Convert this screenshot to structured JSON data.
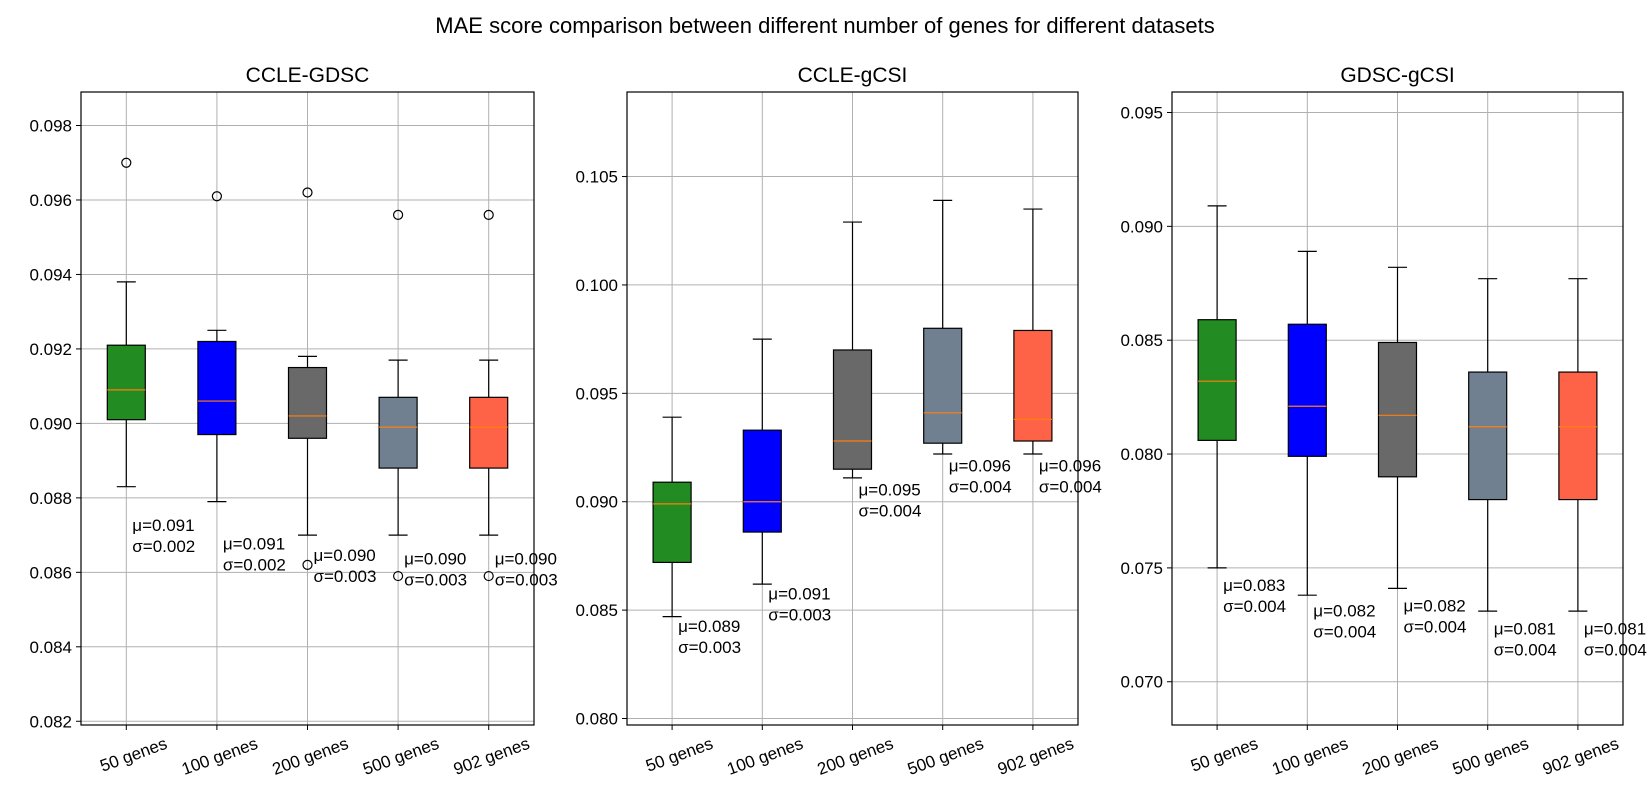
{
  "suptitle": "MAE score comparison between different number of genes for different datasets",
  "chart_data": [
    {
      "type": "box",
      "title": "CCLE-GDSC",
      "categories": [
        "50 genes",
        "100 genes",
        "200 genes",
        "500 genes",
        "902 genes"
      ],
      "ylim": [
        0.0819,
        0.0989
      ],
      "yticks": [
        0.082,
        0.084,
        0.086,
        0.088,
        0.09,
        0.092,
        0.094,
        0.096,
        0.098
      ],
      "ytick_labels": [
        "0.082",
        "0.084",
        "0.086",
        "0.088",
        "0.090",
        "0.092",
        "0.094",
        "0.096",
        "0.098"
      ],
      "grid": true,
      "box_colors": [
        "#228b22",
        "#0000ff",
        "#696969",
        "#708090",
        "#ff6347"
      ],
      "boxes": [
        {
          "whislo": 0.0883,
          "q1": 0.0901,
          "med": 0.0909,
          "q3": 0.0921,
          "whishi": 0.0938,
          "fliers": [
            0.097
          ]
        },
        {
          "whislo": 0.0879,
          "q1": 0.0897,
          "med": 0.0906,
          "q3": 0.0922,
          "whishi": 0.0925,
          "fliers": [
            0.0961
          ]
        },
        {
          "whislo": 0.087,
          "q1": 0.0896,
          "med": 0.0902,
          "q3": 0.0915,
          "whishi": 0.0918,
          "fliers": [
            0.0962,
            0.0862
          ]
        },
        {
          "whislo": 0.087,
          "q1": 0.0888,
          "med": 0.0899,
          "q3": 0.0907,
          "whishi": 0.0917,
          "fliers": [
            0.0956,
            0.0859
          ]
        },
        {
          "whislo": 0.087,
          "q1": 0.0888,
          "med": 0.0899,
          "q3": 0.0907,
          "whishi": 0.0917,
          "fliers": [
            0.0956,
            0.0859
          ]
        }
      ],
      "annotations": [
        {
          "mu": "μ=0.091",
          "sigma": "σ=0.002",
          "y": 0.087
        },
        {
          "mu": "μ=0.091",
          "sigma": "σ=0.002",
          "y": 0.0865
        },
        {
          "mu": "μ=0.090",
          "sigma": "σ=0.003",
          "y": 0.0862
        },
        {
          "mu": "μ=0.090",
          "sigma": "σ=0.003",
          "y": 0.0861
        },
        {
          "mu": "μ=0.090",
          "sigma": "σ=0.003",
          "y": 0.0861
        }
      ]
    },
    {
      "type": "box",
      "title": "CCLE-gCSI",
      "categories": [
        "50 genes",
        "100 genes",
        "200 genes",
        "500 genes",
        "902 genes"
      ],
      "ylim": [
        0.0797,
        0.1089
      ],
      "yticks": [
        0.08,
        0.085,
        0.09,
        0.095,
        0.1,
        0.105
      ],
      "ytick_labels": [
        "0.080",
        "0.085",
        "0.090",
        "0.095",
        "0.100",
        "0.105"
      ],
      "grid": true,
      "box_colors": [
        "#228b22",
        "#0000ff",
        "#696969",
        "#708090",
        "#ff6347"
      ],
      "boxes": [
        {
          "whislo": 0.0847,
          "q1": 0.0872,
          "med": 0.0899,
          "q3": 0.0909,
          "whishi": 0.0939,
          "fliers": []
        },
        {
          "whislo": 0.0862,
          "q1": 0.0886,
          "med": 0.09,
          "q3": 0.0933,
          "whishi": 0.0975,
          "fliers": []
        },
        {
          "whislo": 0.0911,
          "q1": 0.0915,
          "med": 0.0928,
          "q3": 0.097,
          "whishi": 0.1029,
          "fliers": []
        },
        {
          "whislo": 0.0922,
          "q1": 0.0927,
          "med": 0.0941,
          "q3": 0.098,
          "whishi": 0.1039,
          "fliers": []
        },
        {
          "whislo": 0.0922,
          "q1": 0.0928,
          "med": 0.0938,
          "q3": 0.0979,
          "whishi": 0.1035,
          "fliers": []
        }
      ],
      "annotations": [
        {
          "mu": "μ=0.089",
          "sigma": "σ=0.003",
          "y": 0.0838
        },
        {
          "mu": "μ=0.091",
          "sigma": "σ=0.003",
          "y": 0.0853
        },
        {
          "mu": "μ=0.095",
          "sigma": "σ=0.004",
          "y": 0.0901
        },
        {
          "mu": "μ=0.096",
          "sigma": "σ=0.004",
          "y": 0.0912
        },
        {
          "mu": "μ=0.096",
          "sigma": "σ=0.004",
          "y": 0.0912
        }
      ]
    },
    {
      "type": "box",
      "title": "GDSC-gCSI",
      "categories": [
        "50 genes",
        "100 genes",
        "200 genes",
        "500 genes",
        "902 genes"
      ],
      "ylim": [
        0.0681,
        0.0959
      ],
      "yticks": [
        0.07,
        0.075,
        0.08,
        0.085,
        0.09,
        0.095
      ],
      "ytick_labels": [
        "0.070",
        "0.075",
        "0.080",
        "0.085",
        "0.090",
        "0.095"
      ],
      "grid": true,
      "box_colors": [
        "#228b22",
        "#0000ff",
        "#696969",
        "#708090",
        "#ff6347"
      ],
      "boxes": [
        {
          "whislo": 0.075,
          "q1": 0.0806,
          "med": 0.0832,
          "q3": 0.0859,
          "whishi": 0.0909,
          "fliers": []
        },
        {
          "whislo": 0.0738,
          "q1": 0.0799,
          "med": 0.0821,
          "q3": 0.0857,
          "whishi": 0.0889,
          "fliers": []
        },
        {
          "whislo": 0.0741,
          "q1": 0.079,
          "med": 0.0817,
          "q3": 0.0849,
          "whishi": 0.0882,
          "fliers": []
        },
        {
          "whislo": 0.0731,
          "q1": 0.078,
          "med": 0.0812,
          "q3": 0.0836,
          "whishi": 0.0877,
          "fliers": []
        },
        {
          "whislo": 0.0731,
          "q1": 0.078,
          "med": 0.0812,
          "q3": 0.0836,
          "whishi": 0.0877,
          "fliers": []
        }
      ],
      "annotations": [
        {
          "mu": "μ=0.083",
          "sigma": "σ=0.004",
          "y": 0.0738
        },
        {
          "mu": "μ=0.082",
          "sigma": "σ=0.004",
          "y": 0.0727
        },
        {
          "mu": "μ=0.082",
          "sigma": "σ=0.004",
          "y": 0.0729
        },
        {
          "mu": "μ=0.081",
          "sigma": "σ=0.004",
          "y": 0.0719
        },
        {
          "mu": "μ=0.081",
          "sigma": "σ=0.004",
          "y": 0.0719
        }
      ]
    }
  ]
}
